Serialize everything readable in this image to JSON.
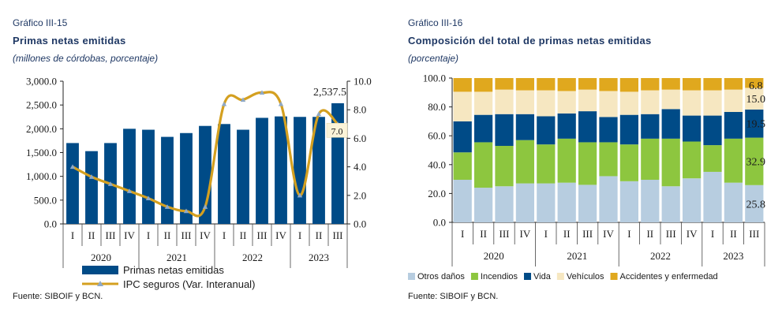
{
  "left": {
    "figure_number": "Gráfico III-15",
    "title": "Primas netas emitidas",
    "subtitle": "(millones de córdobas, porcentaje)",
    "source": "Fuente: SIBOIF y BCN."
  },
  "right": {
    "figure_number": "Gráfico III-16",
    "title": "Composición del total de primas netas emitidas",
    "subtitle": "(porcentaje)",
    "source": "Fuente: SIBOIF y BCN."
  },
  "chart_data": [
    {
      "type": "bar",
      "categories": [
        "I",
        "II",
        "III",
        "IV",
        "I",
        "II",
        "III",
        "IV",
        "I",
        "II",
        "III",
        "IV",
        "I",
        "II",
        "III"
      ],
      "year_groups": [
        {
          "label": "2020",
          "count": 4
        },
        {
          "label": "2021",
          "count": 4
        },
        {
          "label": "2022",
          "count": 4
        },
        {
          "label": "2023",
          "count": 3
        }
      ],
      "series": [
        {
          "name": "Primas netas emitidas",
          "type": "bar",
          "axis": "left",
          "color": "#004b87",
          "values": [
            1700,
            1530,
            1700,
            2000,
            1980,
            1830,
            1910,
            2060,
            2100,
            1980,
            2230,
            2260,
            2250,
            2250,
            2537.5
          ]
        },
        {
          "name": "IPC seguros (Var. Interanual)",
          "type": "line",
          "axis": "right",
          "color": "#d4a020",
          "values": [
            4.0,
            3.3,
            2.8,
            2.3,
            1.8,
            1.2,
            0.9,
            1.2,
            8.4,
            8.7,
            9.2,
            8.4,
            2.0,
            7.7,
            7.0
          ]
        }
      ],
      "y_left": {
        "ylim": [
          0,
          3000
        ],
        "ticks": [
          "0.0",
          "500.0",
          "1,000.0",
          "1,500.0",
          "2,000.0",
          "2,500.0",
          "3,000.0"
        ]
      },
      "y_right": {
        "ylim": [
          0,
          10
        ],
        "ticks": [
          "0.0",
          "2.0",
          "4.0",
          "6.0",
          "8.0",
          "10.0"
        ]
      },
      "data_labels": {
        "bar_last": "2,537.5",
        "line_last": "7.0"
      },
      "legend_position": "bottom"
    },
    {
      "type": "bar",
      "stacked": true,
      "categories": [
        "I",
        "II",
        "III",
        "IV",
        "I",
        "II",
        "III",
        "IV",
        "I",
        "II",
        "III",
        "IV",
        "I",
        "II",
        "III"
      ],
      "year_groups": [
        {
          "label": "2020",
          "count": 4
        },
        {
          "label": "2021",
          "count": 4
        },
        {
          "label": "2022",
          "count": 4
        },
        {
          "label": "2023",
          "count": 3
        }
      ],
      "series": [
        {
          "name": "Otros daños",
          "color": "#b7cde0",
          "values": [
            29.5,
            24.0,
            25.0,
            27.0,
            27.0,
            27.5,
            26.0,
            32.0,
            28.5,
            29.5,
            25.0,
            30.5,
            35.0,
            27.5,
            25.8
          ]
        },
        {
          "name": "Incendios",
          "color": "#8dc63f",
          "values": [
            19.0,
            31.5,
            28.0,
            30.0,
            27.0,
            30.5,
            29.5,
            23.5,
            25.5,
            28.5,
            33.0,
            25.5,
            18.5,
            30.5,
            32.9
          ]
        },
        {
          "name": "Vida",
          "color": "#004b87",
          "values": [
            21.5,
            19.0,
            22.0,
            18.0,
            19.5,
            17.5,
            21.5,
            17.5,
            20.5,
            17.0,
            20.5,
            18.0,
            20.5,
            18.5,
            19.5
          ]
        },
        {
          "name": "Vehículos",
          "color": "#f6e7c1",
          "values": [
            20.5,
            16.0,
            17.0,
            16.5,
            18.0,
            15.5,
            15.0,
            18.0,
            16.0,
            16.5,
            13.5,
            17.5,
            17.5,
            15.5,
            15.0
          ]
        },
        {
          "name": "Accidentes y enfermedad",
          "color": "#e0a81e",
          "values": [
            9.5,
            9.5,
            8.0,
            8.5,
            8.5,
            9.0,
            8.0,
            9.0,
            9.5,
            8.5,
            8.0,
            8.5,
            8.5,
            8.0,
            6.8
          ]
        }
      ],
      "y": {
        "ylim": [
          0,
          100
        ],
        "ticks": [
          "0.0",
          "20.0",
          "40.0",
          "60.0",
          "80.0",
          "100.0"
        ]
      },
      "data_labels": [
        "25.8",
        "32.9",
        "19.5",
        "15.0",
        "6.8"
      ],
      "legend_position": "bottom"
    }
  ]
}
